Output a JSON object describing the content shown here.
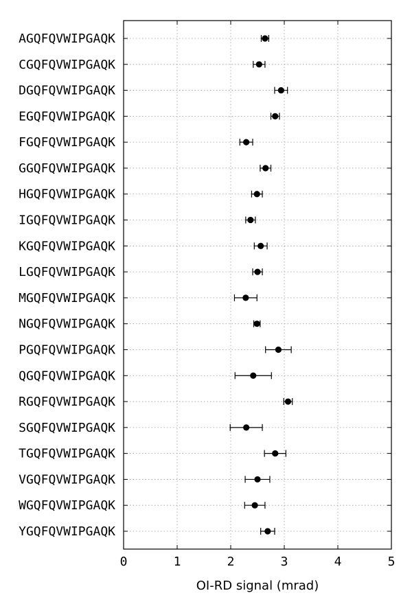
{
  "chart_data": {
    "type": "scatter",
    "orientation": "horizontal",
    "title": "",
    "xlabel": "OI-RD signal (mrad)",
    "ylabel": "",
    "xlim": [
      0,
      5
    ],
    "xticks": [
      0,
      1,
      2,
      3,
      4,
      5
    ],
    "grid": true,
    "legend": "none",
    "marker_color": "#000000",
    "categories": [
      "AGQFQVWIPGAQK",
      "CGQFQVWIPGAQK",
      "DGQFQVWIPGAQK",
      "EGQFQVWIPGAQK",
      "FGQFQVWIPGAQK",
      "GGQFQVWIPGAQK",
      "HGQFQVWIPGAQK",
      "IGQFQVWIPGAQK",
      "KGQFQVWIPGAQK",
      "LGQFQVWIPGAQK",
      "MGQFQVWIPGAQK",
      "NGQFQVWIPGAQK",
      "PGQFQVWIPGAQK",
      "QGQFQVWIPGAQK",
      "RGQFQVWIPGAQK",
      "SGQFQVWIPGAQK",
      "TGQFQVWIPGAQK",
      "VGQFQVWIPGAQK",
      "WGQFQVWIPGAQK",
      "YGQFQVWIPGAQK"
    ],
    "values": [
      2.64,
      2.53,
      2.94,
      2.83,
      2.29,
      2.65,
      2.49,
      2.37,
      2.56,
      2.5,
      2.28,
      2.49,
      2.89,
      2.42,
      3.07,
      2.29,
      2.83,
      2.5,
      2.45,
      2.69
    ],
    "errors": [
      0.07,
      0.11,
      0.12,
      0.08,
      0.12,
      0.1,
      0.1,
      0.09,
      0.12,
      0.09,
      0.21,
      0.06,
      0.24,
      0.34,
      0.08,
      0.3,
      0.2,
      0.23,
      0.19,
      0.13
    ]
  }
}
